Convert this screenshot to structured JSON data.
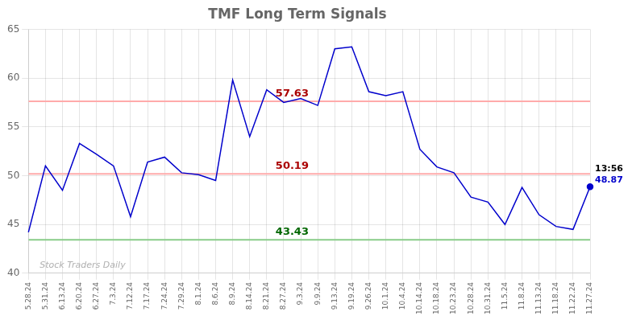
{
  "chart_data": {
    "type": "line",
    "title": "TMF Long Term Signals",
    "categories": [
      "5.28.24",
      "5.31.24",
      "6.13.24",
      "6.20.24",
      "6.27.24",
      "7.3.24",
      "7.12.24",
      "7.17.24",
      "7.24.24",
      "7.29.24",
      "8.1.24",
      "8.6.24",
      "8.9.24",
      "8.14.24",
      "8.21.24",
      "8.27.24",
      "9.3.24",
      "9.9.24",
      "9.13.24",
      "9.19.24",
      "9.26.24",
      "10.1.24",
      "10.4.24",
      "10.14.24",
      "10.18.24",
      "10.23.24",
      "10.28.24",
      "10.31.24",
      "11.5.24",
      "11.8.24",
      "11.13.24",
      "11.18.24",
      "11.22.24",
      "11.27.24"
    ],
    "values": [
      44.2,
      51.0,
      48.5,
      53.3,
      52.2,
      51.0,
      45.8,
      51.4,
      51.9,
      50.3,
      50.1,
      49.5,
      59.8,
      54.0,
      58.8,
      57.5,
      57.9,
      57.2,
      63.0,
      63.2,
      58.6,
      58.2,
      58.6,
      52.7,
      50.9,
      50.3,
      47.8,
      47.3,
      45.0,
      48.8,
      46.0,
      44.8,
      44.5,
      48.87
    ],
    "color": "#0000cc",
    "ylim": [
      40,
      65
    ],
    "yticks": [
      40,
      45,
      50,
      55,
      60,
      65
    ],
    "grid": true,
    "hlines": [
      {
        "value": 57.63,
        "label": "57.63",
        "color": "#ffaaaa",
        "label_color": "#aa0000"
      },
      {
        "value": 50.19,
        "label": "50.19",
        "color": "#ffaaaa",
        "label_color": "#aa0000"
      },
      {
        "value": 43.43,
        "label": "43.43",
        "color": "#88cc88",
        "label_color": "#006600"
      }
    ],
    "annotations": [
      {
        "text": "13:56",
        "color": "#000000",
        "x": "11.27.24"
      },
      {
        "text": "48.87",
        "color": "#0000cc",
        "x": "11.27.24"
      },
      {
        "text": "Stock Traders Daily",
        "color": "#b0b0b0"
      }
    ]
  }
}
